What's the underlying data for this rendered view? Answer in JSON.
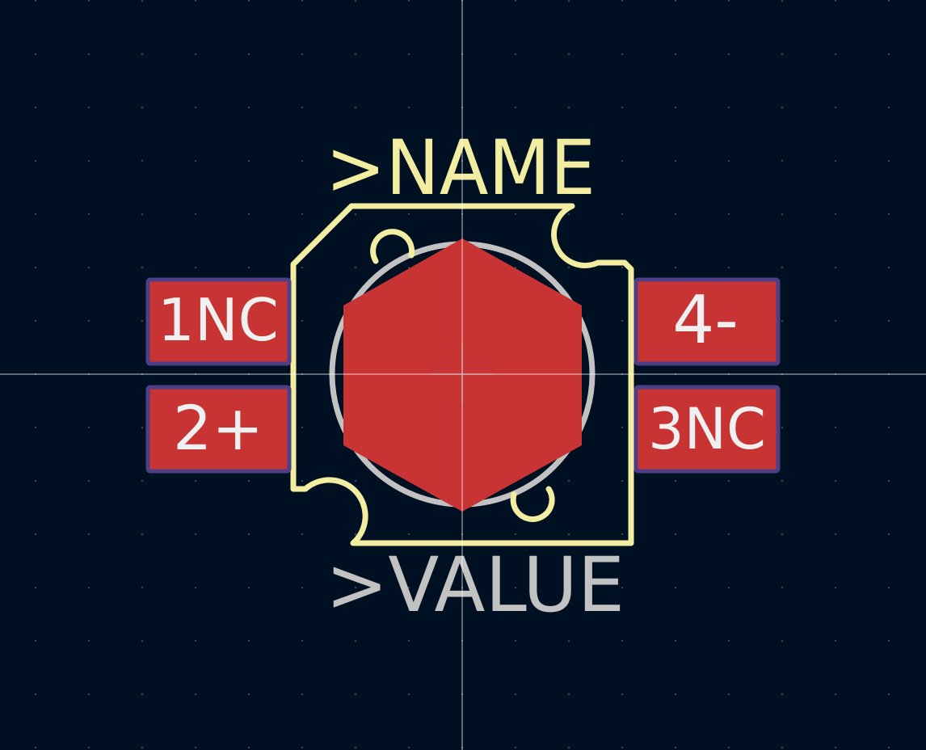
{
  "labels": {
    "name": ">NAME",
    "value": ">VALUE"
  },
  "pads": [
    {
      "id": "pad-1",
      "text": "1NC"
    },
    {
      "id": "pad-2",
      "text": "2+"
    },
    {
      "id": "pad-3",
      "text": "3NC"
    },
    {
      "id": "pad-4",
      "text": "4-"
    }
  ],
  "colors": {
    "background": "#001023",
    "silkscreen": "#f2eda1",
    "fab": "#c2c2c2",
    "pad_copper": "#c83434",
    "pad_outline": "#4d3f87",
    "pad_text": "#f0f0f0",
    "crosshair": "#ffffff",
    "grid": "#3c4a5e"
  }
}
